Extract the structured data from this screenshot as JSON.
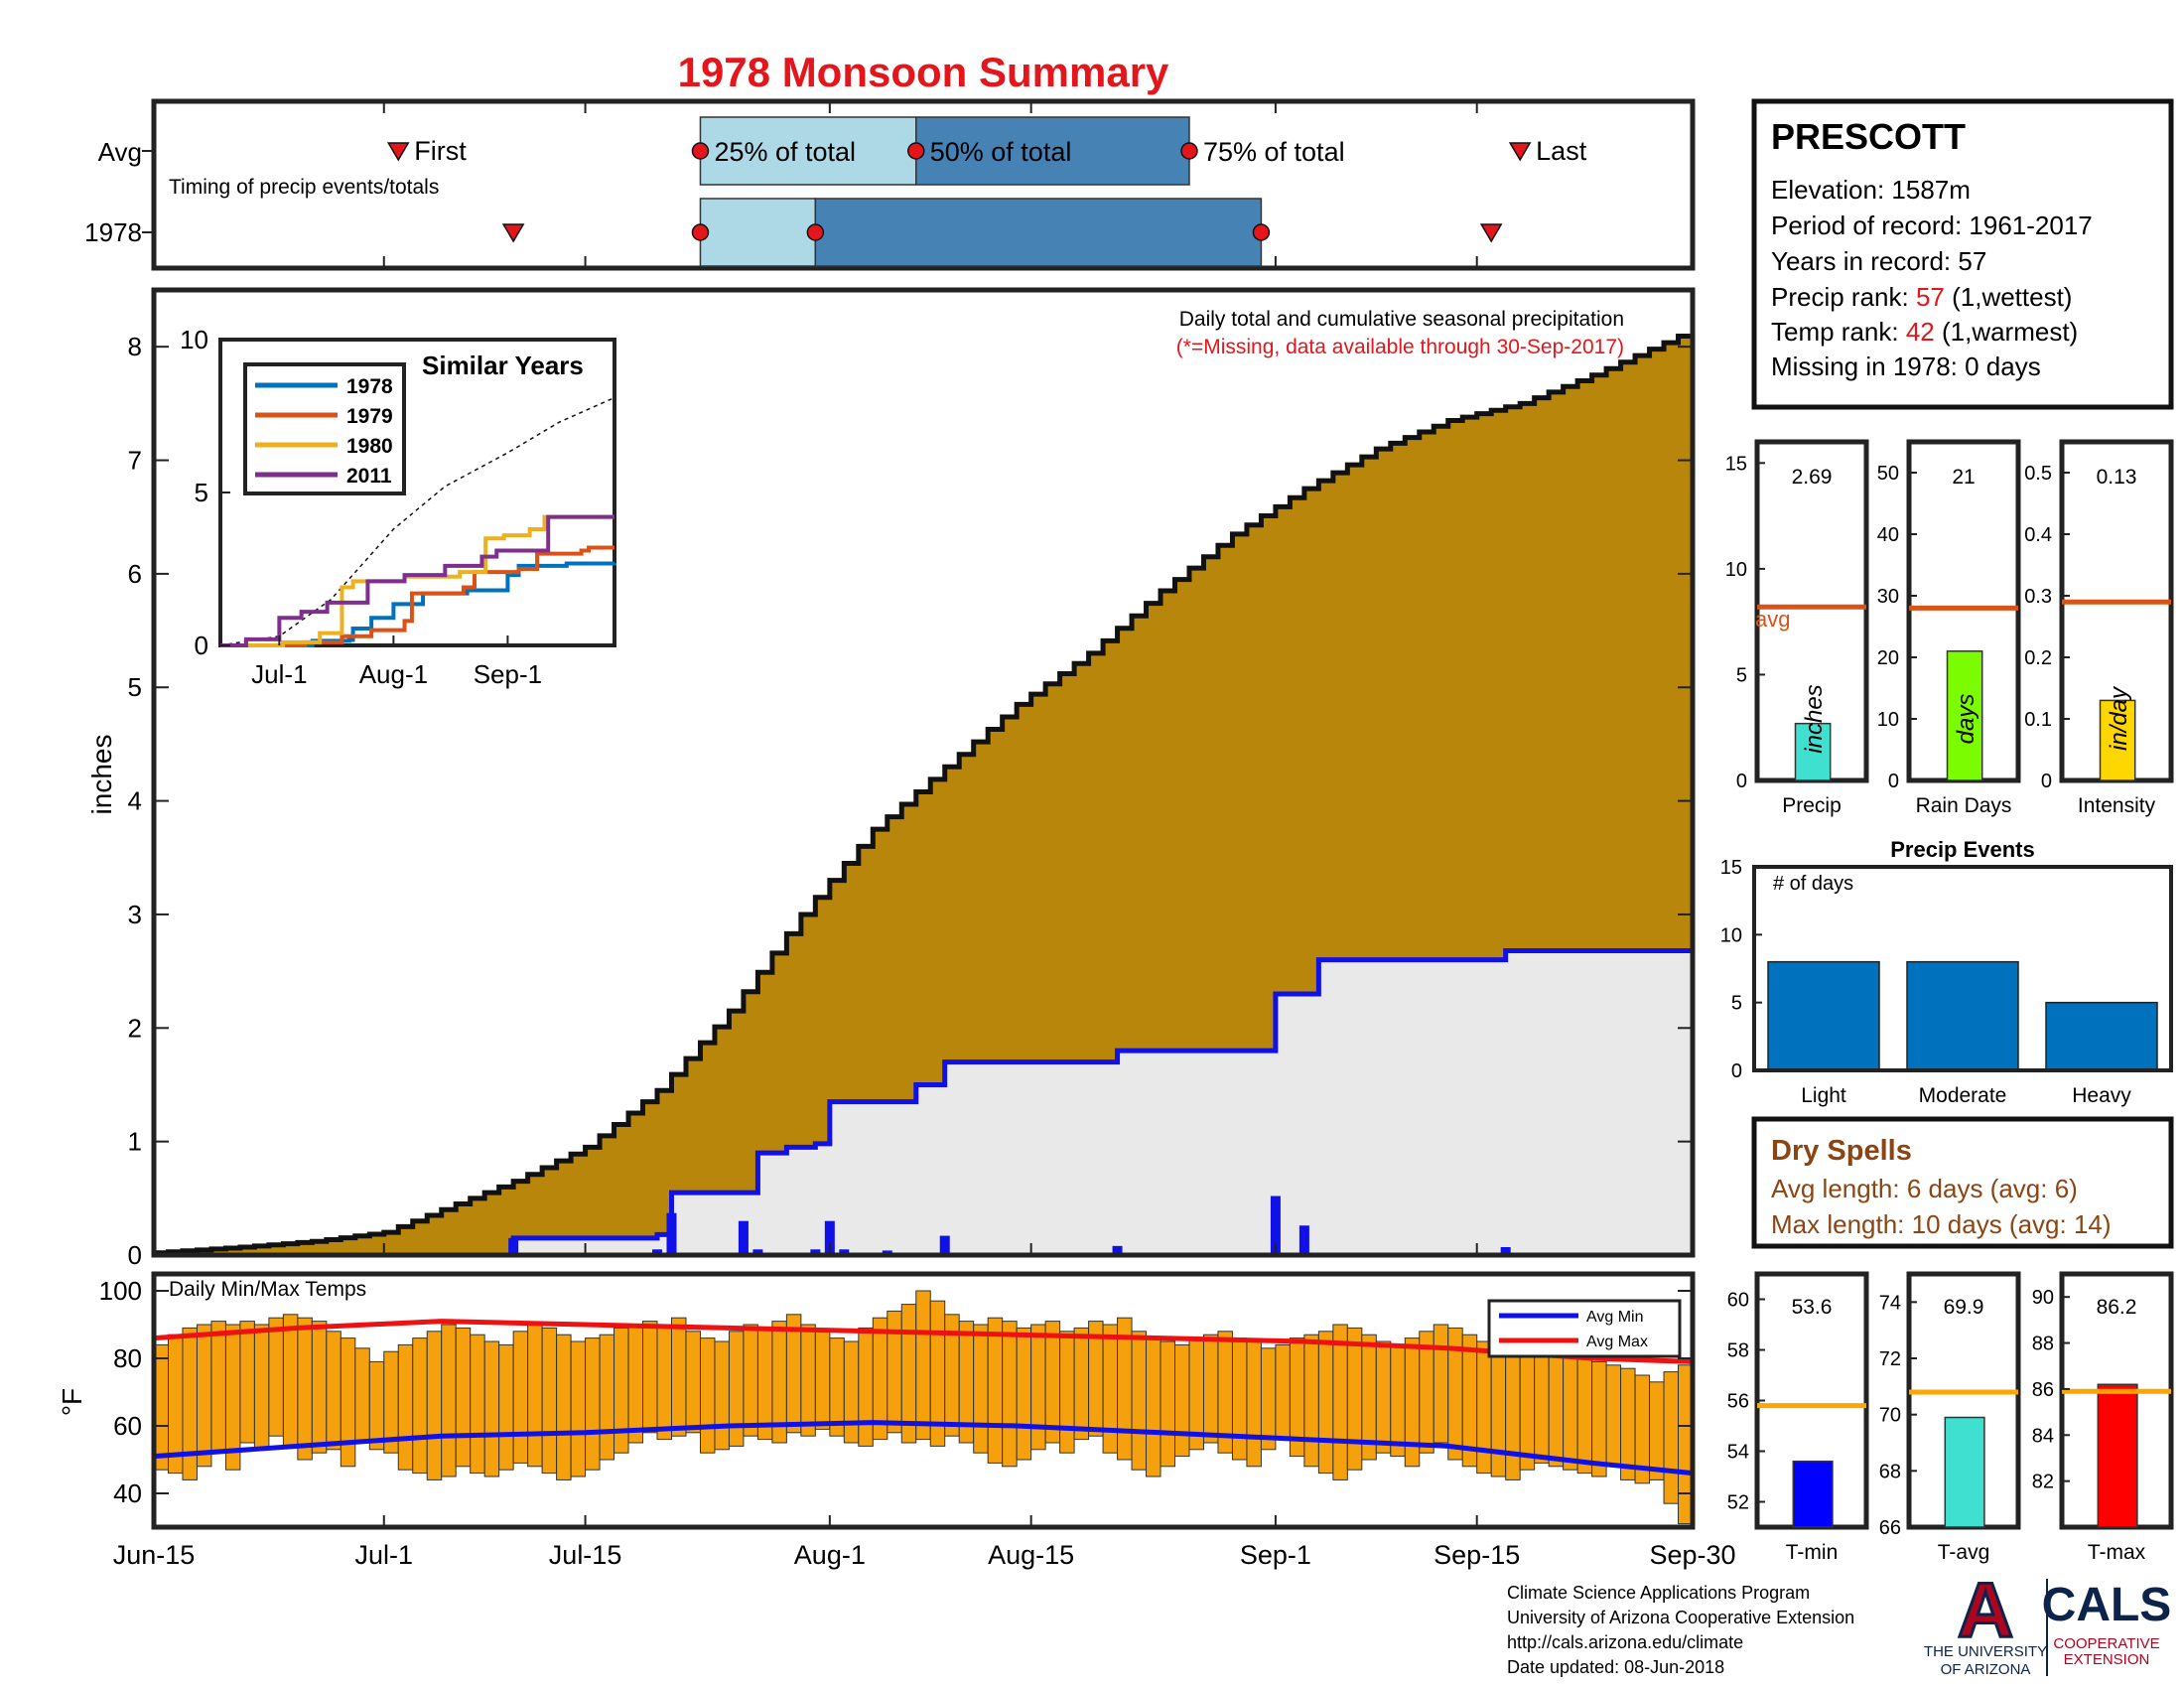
{
  "title": "1978 Monsoon Summary",
  "colors": {
    "title": "#e4151b",
    "cumulative_fill": "#b8860b",
    "avg_fill": "#e9e9e9",
    "avg_line": "#1010e8",
    "daily_bar": "#1010e8",
    "temp_bar": "#f5a10e",
    "avg_max_line": "#ee1111",
    "avg_min_line": "#1010e8",
    "timing_light": "#add8e6",
    "timing_dark": "#4682b4",
    "marker": "#e4151b",
    "rank_red": "#e4151b",
    "dry_brown": "#8b4513",
    "avg_line_orange": "#d95319"
  },
  "timing": {
    "row_labels": [
      "Avg",
      "1978"
    ],
    "note": "Timing of precip events/totals",
    "first_label": "First",
    "last_label": "Last",
    "pct25_label": "25% of total",
    "pct50_label": "50% of total",
    "pct75_label": "75% of total",
    "avg": {
      "first": "2018-07-02",
      "p25": "2018-07-23",
      "p50": "2018-08-07",
      "p75": "2018-08-26",
      "last": "2018-09-18"
    },
    "y1978": {
      "first": "2018-07-10",
      "p25": "2018-07-23",
      "p50": "2018-07-31",
      "p75": "2018-08-31",
      "last": "2018-09-16"
    }
  },
  "station": {
    "name": "PRESCOTT",
    "elevation": "Elevation: 1587m",
    "period": "Period of record: 1961-2017",
    "years": "Years in record: 57",
    "precip_rank_prefix": "Precip rank: ",
    "precip_rank_value": "57",
    "precip_rank_suffix": " (1,wettest)",
    "temp_rank_prefix": "Temp rank: ",
    "temp_rank_value": "42",
    "temp_rank_suffix": " (1,warmest)",
    "missing": "Missing in 1978: 0 days"
  },
  "precip_chart": {
    "note_line1": "Daily total and cumulative seasonal precipitation",
    "note_line2": "(*=Missing, data available through 30-Sep-2017)",
    "ylabel": "inches",
    "yticks": [
      "0",
      "1",
      "2",
      "3",
      "4",
      "5",
      "6",
      "7",
      "8"
    ]
  },
  "x_axis": {
    "tick_labels": [
      "Jun-15",
      "Jul-1",
      "Jul-15",
      "Aug-1",
      "Aug-15",
      "Sep-1",
      "Sep-15",
      "Sep-30"
    ]
  },
  "similar_years": {
    "title": "Similar Years",
    "legend": [
      "1978",
      "1979",
      "1980",
      "2011"
    ],
    "line_colors": [
      "#0072bd",
      "#d95319",
      "#edb120",
      "#7e2f8e"
    ],
    "yticks": [
      "0",
      "5",
      "10"
    ],
    "xticks": [
      "Jul-1",
      "Aug-1",
      "Sep-1"
    ]
  },
  "stats": {
    "avg_label": "avg",
    "precip": {
      "value_text": "2.69",
      "unit": "inches",
      "xlabel": "Precip",
      "yticks": [
        "0",
        "5",
        "10",
        "15"
      ],
      "color": "#40e0d0"
    },
    "rain_days": {
      "value_text": "21",
      "unit": "days",
      "xlabel": "Rain Days",
      "yticks": [
        "0",
        "10",
        "20",
        "30",
        "40",
        "50"
      ],
      "color": "#7cfc00"
    },
    "intensity": {
      "value_text": "0.13",
      "unit": "in/day",
      "xlabel": "Intensity",
      "yticks": [
        "0",
        "0.1",
        "0.2",
        "0.3",
        "0.4",
        "0.5"
      ],
      "color": "#ffd700"
    }
  },
  "events": {
    "title": "Precip Events",
    "note": "# of days",
    "yticks": [
      "0",
      "5",
      "10",
      "15"
    ],
    "categories": [
      "Light",
      "Moderate",
      "Heavy"
    ],
    "bar_color": "#0072bd"
  },
  "dry_spells": {
    "title": "Dry Spells",
    "avg_length": "Avg length: 6 days (avg: 6)",
    "max_length": "Max length: 10 days (avg: 14)"
  },
  "temp_chart": {
    "note": "Daily Min/Max Temps",
    "ylabel": "°F",
    "yticks": [
      "40",
      "60",
      "80",
      "100"
    ],
    "legend_min": "Avg Min",
    "legend_max": "Avg Max"
  },
  "temp_stats": {
    "avg_line_color": "#ffa500",
    "tmin": {
      "value_text": "53.6",
      "xlabel": "T-min",
      "yticks": [
        "52",
        "54",
        "56",
        "58",
        "60"
      ],
      "color": "#0000ff"
    },
    "tavg": {
      "value_text": "69.9",
      "xlabel": "T-avg",
      "yticks": [
        "66",
        "68",
        "70",
        "72",
        "74"
      ],
      "color": "#40e0d0"
    },
    "tmax": {
      "value_text": "86.2",
      "xlabel": "T-max",
      "yticks": [
        "82",
        "84",
        "86",
        "88",
        "90"
      ],
      "color": "#ff0000"
    }
  },
  "footer": {
    "line1": "Climate Science Applications Program",
    "line2": "University of Arizona Cooperative Extension",
    "line3": "http://cals.arizona.edu/climate",
    "line4": " Date updated: 08-Jun-2018",
    "ua_line1": "THE UNIVERSITY",
    "ua_line2": "OF ARIZONA",
    "cals": "CALS",
    "cals_line1": "COOPERATIVE",
    "cals_line2": "EXTENSION",
    "ua_letter": "A"
  },
  "chart_data": [
    {
      "type": "area",
      "name": "cumulative-precip",
      "x_start": "2018-06-15",
      "x_end": "2018-09-30",
      "ylim": [
        0,
        8.5
      ],
      "ylabel": "inches",
      "avg_cumulative": {
        "x": [
          "2018-06-15",
          "2018-06-21",
          "2018-06-26",
          "2018-07-01",
          "2018-07-05",
          "2018-07-10",
          "2018-07-15",
          "2018-07-20",
          "2018-07-25",
          "2018-07-30",
          "2018-08-04",
          "2018-08-09",
          "2018-08-14",
          "2018-08-19",
          "2018-08-24",
          "2018-08-29",
          "2018-09-03",
          "2018-09-08",
          "2018-09-13",
          "2018-09-18",
          "2018-09-23",
          "2018-09-30"
        ],
        "y": [
          0.02,
          0.07,
          0.12,
          0.2,
          0.4,
          0.65,
          0.95,
          1.45,
          2.15,
          3.0,
          3.75,
          4.3,
          4.85,
          5.3,
          5.85,
          6.35,
          6.75,
          7.1,
          7.35,
          7.5,
          7.75,
          8.15
        ]
      },
      "y1978_cumulative": {
        "x": [
          "2018-06-15",
          "2018-07-10",
          "2018-07-20",
          "2018-07-21",
          "2018-07-26",
          "2018-07-27",
          "2018-07-29",
          "2018-07-31",
          "2018-08-01",
          "2018-08-07",
          "2018-08-09",
          "2018-08-21",
          "2018-09-01",
          "2018-09-02",
          "2018-09-04",
          "2018-09-16",
          "2018-09-17",
          "2018-09-30"
        ],
        "y": [
          0,
          0.15,
          0.18,
          0.55,
          0.55,
          0.9,
          0.95,
          0.98,
          1.35,
          1.5,
          1.7,
          1.8,
          2.3,
          2.3,
          2.6,
          2.6,
          2.68,
          2.69
        ]
      },
      "daily_1978": {
        "x": [
          "2018-07-10",
          "2018-07-20",
          "2018-07-21",
          "2018-07-26",
          "2018-07-27",
          "2018-07-31",
          "2018-08-01",
          "2018-08-02",
          "2018-08-05",
          "2018-08-09",
          "2018-08-21",
          "2018-09-01",
          "2018-09-03",
          "2018-09-17"
        ],
        "y": [
          0.15,
          0.05,
          0.37,
          0.3,
          0.05,
          0.05,
          0.3,
          0.05,
          0.04,
          0.17,
          0.08,
          0.52,
          0.26,
          0.07
        ]
      }
    },
    {
      "type": "line",
      "name": "similar-years",
      "ylim": [
        0,
        10
      ],
      "xticks": [
        "Jul-1",
        "Aug-1",
        "Sep-1"
      ],
      "avg_dashed": {
        "x": [
          "2018-06-15",
          "2018-07-01",
          "2018-07-15",
          "2018-08-01",
          "2018-08-15",
          "2018-09-01",
          "2018-09-15",
          "2018-09-30"
        ],
        "y": [
          0,
          0.3,
          1.5,
          3.8,
          5.2,
          6.3,
          7.3,
          8.1
        ]
      },
      "series": [
        {
          "name": "1978",
          "x": [
            "2018-06-15",
            "2018-07-10",
            "2018-07-20",
            "2018-07-21",
            "2018-07-26",
            "2018-08-01",
            "2018-08-09",
            "2018-08-21",
            "2018-09-01",
            "2018-09-04",
            "2018-09-17",
            "2018-09-30"
          ],
          "y": [
            0,
            0.15,
            0.18,
            0.55,
            0.9,
            1.35,
            1.7,
            1.8,
            2.3,
            2.6,
            2.68,
            2.69
          ]
        },
        {
          "name": "1979",
          "x": [
            "2018-06-15",
            "2018-07-08",
            "2018-07-18",
            "2018-07-26",
            "2018-08-04",
            "2018-08-06",
            "2018-08-20",
            "2018-08-23",
            "2018-09-04",
            "2018-09-09",
            "2018-09-21",
            "2018-09-23",
            "2018-09-30"
          ],
          "y": [
            0,
            0.1,
            0.3,
            0.5,
            0.8,
            1.7,
            1.9,
            2.4,
            2.5,
            3.0,
            3.1,
            3.2,
            3.2
          ]
        },
        {
          "name": "1980",
          "x": [
            "2018-06-15",
            "2018-07-02",
            "2018-07-12",
            "2018-07-18",
            "2018-07-21",
            "2018-08-04",
            "2018-08-19",
            "2018-08-26",
            "2018-08-31",
            "2018-09-07",
            "2018-09-11",
            "2018-09-30"
          ],
          "y": [
            0,
            0.1,
            0.4,
            1.9,
            2.1,
            2.25,
            2.4,
            3.5,
            3.6,
            3.8,
            4.2,
            4.2
          ]
        },
        {
          "name": "2011",
          "x": [
            "2018-06-15",
            "2018-06-22",
            "2018-07-01",
            "2018-07-07",
            "2018-07-14",
            "2018-07-25",
            "2018-08-04",
            "2018-08-15",
            "2018-08-25",
            "2018-08-29",
            "2018-09-12",
            "2018-09-30"
          ],
          "y": [
            0,
            0.2,
            0.9,
            1.1,
            1.4,
            2.1,
            2.3,
            2.6,
            2.9,
            3.1,
            4.2,
            4.2
          ]
        }
      ]
    },
    {
      "type": "bar",
      "name": "season-stats",
      "categories": [
        "Precip",
        "Rain Days",
        "Intensity"
      ],
      "values": [
        2.69,
        21,
        0.13
      ],
      "averages": [
        8.2,
        28,
        0.29
      ],
      "ylims": [
        [
          0,
          16
        ],
        [
          0,
          55
        ],
        [
          0,
          0.55
        ]
      ]
    },
    {
      "type": "bar",
      "name": "precip-events",
      "title": "Precip Events",
      "categories": [
        "Light",
        "Moderate",
        "Heavy"
      ],
      "values": [
        8,
        8,
        5
      ],
      "ylim": [
        0,
        15
      ]
    },
    {
      "type": "bar",
      "name": "daily-temps",
      "x_start": "2018-06-15",
      "x_end": "2018-09-30",
      "ylim": [
        30,
        105
      ],
      "tmax": [
        84,
        87,
        89,
        90,
        91,
        90,
        91,
        90,
        92,
        93,
        92,
        91,
        88,
        86,
        83,
        79,
        82,
        84,
        86,
        88,
        90,
        89,
        87,
        85,
        84,
        88,
        90,
        89,
        87,
        85,
        86,
        87,
        89,
        90,
        91,
        90,
        92,
        88,
        86,
        85,
        88,
        90,
        89,
        91,
        93,
        90,
        88,
        86,
        85,
        89,
        92,
        94,
        96,
        100,
        97,
        93,
        91,
        90,
        92,
        91,
        89,
        90,
        91,
        88,
        89,
        91,
        90,
        92,
        88,
        86,
        85,
        84,
        86,
        87,
        88,
        86,
        85,
        83,
        84,
        86,
        87,
        88,
        90,
        89,
        87,
        85,
        84,
        86,
        88,
        90,
        89,
        87,
        85,
        84,
        82,
        83,
        85,
        84,
        82,
        80,
        79,
        78,
        77,
        75,
        73,
        76,
        78,
        80,
        82,
        84,
        86,
        85,
        87,
        88,
        88
      ],
      "tmin": [
        47,
        46,
        44,
        48,
        52,
        47,
        55,
        53,
        57,
        54,
        50,
        52,
        53,
        48,
        55,
        53,
        52,
        47,
        46,
        44,
        45,
        48,
        46,
        45,
        47,
        49,
        48,
        46,
        44,
        45,
        47,
        50,
        52,
        55,
        58,
        56,
        57,
        58,
        52,
        53,
        54,
        57,
        56,
        55,
        58,
        57,
        59,
        57,
        55,
        54,
        56,
        58,
        55,
        56,
        54,
        57,
        55,
        52,
        49,
        48,
        50,
        53,
        55,
        52,
        56,
        57,
        52,
        50,
        47,
        45,
        48,
        51,
        53,
        55,
        52,
        50,
        48,
        53,
        56,
        51,
        48,
        46,
        44,
        47,
        50,
        52,
        51,
        48,
        52,
        55,
        50,
        48,
        46,
        45,
        44,
        47,
        49,
        48,
        47,
        46,
        45,
        48,
        44,
        43,
        44,
        37,
        31,
        29,
        31,
        45,
        43,
        50,
        52,
        49,
        48
      ],
      "avg_max": {
        "x": [
          "2018-06-15",
          "2018-06-25",
          "2018-07-05",
          "2018-07-15",
          "2018-07-25",
          "2018-08-04",
          "2018-08-14",
          "2018-08-24",
          "2018-09-03",
          "2018-09-13",
          "2018-09-23",
          "2018-09-30"
        ],
        "y": [
          86,
          89,
          91,
          90,
          89,
          88,
          87,
          86,
          85,
          83,
          80,
          79
        ]
      },
      "avg_min": {
        "x": [
          "2018-06-15",
          "2018-06-25",
          "2018-07-05",
          "2018-07-15",
          "2018-07-25",
          "2018-08-04",
          "2018-08-14",
          "2018-08-24",
          "2018-09-03",
          "2018-09-13",
          "2018-09-23",
          "2018-09-30"
        ],
        "y": [
          51,
          54,
          57,
          58,
          60,
          61,
          60,
          58,
          56,
          54,
          49,
          46
        ]
      }
    },
    {
      "type": "bar",
      "name": "temp-stats",
      "categories": [
        "T-min",
        "T-avg",
        "T-max"
      ],
      "values": [
        53.6,
        69.9,
        86.2
      ],
      "averages": [
        55.8,
        70.8,
        85.9
      ],
      "ylims": [
        [
          51,
          61
        ],
        [
          66,
          75
        ],
        [
          80,
          91
        ]
      ]
    }
  ]
}
